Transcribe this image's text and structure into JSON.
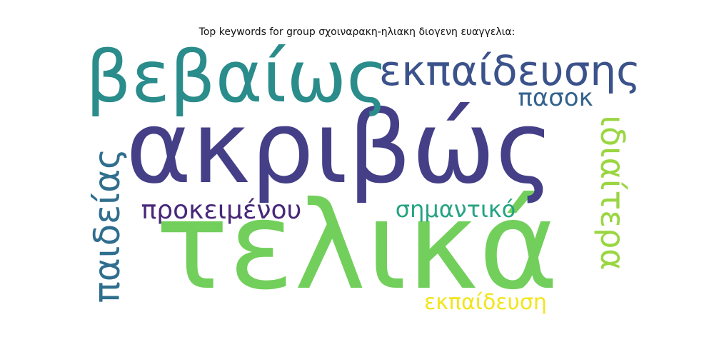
{
  "title": "Top keywords for group σχοιναρακη-ηλιακη διογενη ευαγγελια:",
  "words": [
    {
      "text": "τελικά",
      "color": "#72cf5b"
    },
    {
      "text": "ακριβώς",
      "color": "#443f87"
    },
    {
      "text": "βεβαίως",
      "color": "#2a8c8b"
    },
    {
      "text": "εκπαίδευσης",
      "color": "#3b528b"
    },
    {
      "text": "πασοκ",
      "color": "#33638d"
    },
    {
      "text": "ιδιαίτερα",
      "color": "#9ad641"
    },
    {
      "text": "παιδείας",
      "color": "#2f6e8e"
    },
    {
      "text": "προκειμένου",
      "color": "#482878"
    },
    {
      "text": "σημαντικό",
      "color": "#25a383"
    },
    {
      "text": "εκπαίδευση",
      "color": "#f2e51d"
    }
  ]
}
